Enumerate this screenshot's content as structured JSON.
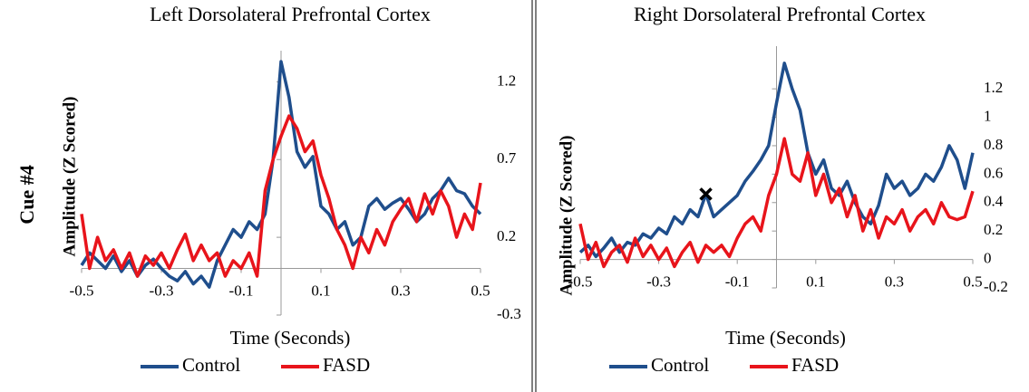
{
  "row_label": "Cue #4",
  "chart_data": [
    {
      "type": "line",
      "title": "Left Dorsolateral Prefrontal Cortex",
      "xlabel": "Time (Seconds)",
      "ylabel": "Amplitude (Z Scored)",
      "x": [
        -0.5,
        -0.48,
        -0.46,
        -0.44,
        -0.42,
        -0.4,
        -0.38,
        -0.36,
        -0.34,
        -0.32,
        -0.3,
        -0.28,
        -0.26,
        -0.24,
        -0.22,
        -0.2,
        -0.18,
        -0.16,
        -0.14,
        -0.12,
        -0.1,
        -0.08,
        -0.06,
        -0.04,
        -0.02,
        0,
        0.02,
        0.04,
        0.06,
        0.08,
        0.1,
        0.12,
        0.14,
        0.16,
        0.18,
        0.2,
        0.22,
        0.24,
        0.26,
        0.28,
        0.3,
        0.32,
        0.34,
        0.36,
        0.38,
        0.4,
        0.42,
        0.44,
        0.46,
        0.48,
        0.5
      ],
      "series": [
        {
          "name": "Control",
          "color": "#1f4e8c",
          "values": [
            0.02,
            0.1,
            0.05,
            0.0,
            0.08,
            -0.02,
            0.05,
            -0.05,
            0.02,
            0.06,
            0.0,
            -0.05,
            -0.08,
            -0.02,
            -0.1,
            -0.05,
            -0.12,
            0.05,
            0.15,
            0.25,
            0.2,
            0.3,
            0.25,
            0.35,
            0.7,
            1.33,
            1.1,
            0.75,
            0.65,
            0.72,
            0.4,
            0.35,
            0.25,
            0.3,
            0.15,
            0.2,
            0.4,
            0.45,
            0.38,
            0.42,
            0.45,
            0.38,
            0.3,
            0.35,
            0.45,
            0.5,
            0.58,
            0.5,
            0.48,
            0.4,
            0.35
          ]
        },
        {
          "name": "FASD",
          "color": "#e8141b",
          "values": [
            0.35,
            0.0,
            0.2,
            0.05,
            0.12,
            0.0,
            0.1,
            -0.05,
            0.08,
            0.02,
            0.1,
            0.0,
            0.12,
            0.22,
            0.05,
            0.15,
            0.05,
            0.1,
            -0.05,
            0.05,
            0.0,
            0.1,
            -0.05,
            0.5,
            0.7,
            0.85,
            0.98,
            0.9,
            0.75,
            0.82,
            0.6,
            0.45,
            0.25,
            0.15,
            0.0,
            0.2,
            0.1,
            0.25,
            0.15,
            0.3,
            0.38,
            0.45,
            0.3,
            0.48,
            0.35,
            0.5,
            0.4,
            0.2,
            0.35,
            0.25,
            0.55
          ]
        }
      ],
      "xlim": [
        -0.5,
        0.5
      ],
      "xticks": [
        -0.5,
        -0.3,
        -0.1,
        0.1,
        0.3,
        0.5
      ],
      "ylim": [
        -0.3,
        1.4
      ],
      "yticks": [
        -0.3,
        0.2,
        0.7,
        1.2
      ]
    },
    {
      "type": "line",
      "title": "Right Dorsolateral Prefrontal Cortex",
      "xlabel": "Time (Seconds)",
      "ylabel": "Amplitude (Z Scored)",
      "x": [
        -0.5,
        -0.48,
        -0.46,
        -0.44,
        -0.42,
        -0.4,
        -0.38,
        -0.36,
        -0.34,
        -0.32,
        -0.3,
        -0.28,
        -0.26,
        -0.24,
        -0.22,
        -0.2,
        -0.18,
        -0.16,
        -0.14,
        -0.12,
        -0.1,
        -0.08,
        -0.06,
        -0.04,
        -0.02,
        0,
        0.02,
        0.04,
        0.06,
        0.08,
        0.1,
        0.12,
        0.14,
        0.16,
        0.18,
        0.2,
        0.22,
        0.24,
        0.26,
        0.28,
        0.3,
        0.32,
        0.34,
        0.36,
        0.38,
        0.4,
        0.42,
        0.44,
        0.46,
        0.48,
        0.5
      ],
      "series": [
        {
          "name": "Control",
          "color": "#1f4e8c",
          "values": [
            0.05,
            0.1,
            0.02,
            0.08,
            0.15,
            0.05,
            0.12,
            0.1,
            0.18,
            0.15,
            0.22,
            0.18,
            0.3,
            0.25,
            0.35,
            0.3,
            0.46,
            0.3,
            0.35,
            0.4,
            0.45,
            0.55,
            0.62,
            0.7,
            0.8,
            1.1,
            1.38,
            1.2,
            1.05,
            0.75,
            0.6,
            0.7,
            0.5,
            0.45,
            0.55,
            0.4,
            0.3,
            0.25,
            0.38,
            0.6,
            0.5,
            0.55,
            0.45,
            0.5,
            0.6,
            0.55,
            0.65,
            0.8,
            0.7,
            0.5,
            0.75
          ]
        },
        {
          "name": "FASD",
          "color": "#e8141b",
          "values": [
            0.25,
            0.0,
            0.12,
            -0.05,
            0.05,
            0.1,
            -0.02,
            0.15,
            0.02,
            0.1,
            0.0,
            0.08,
            -0.05,
            0.05,
            0.12,
            -0.02,
            0.1,
            0.05,
            0.1,
            0.02,
            0.15,
            0.25,
            0.3,
            0.2,
            0.45,
            0.6,
            0.85,
            0.6,
            0.55,
            0.75,
            0.45,
            0.6,
            0.4,
            0.5,
            0.3,
            0.45,
            0.2,
            0.35,
            0.15,
            0.3,
            0.25,
            0.35,
            0.2,
            0.3,
            0.35,
            0.25,
            0.4,
            0.3,
            0.28,
            0.3,
            0.48
          ]
        }
      ],
      "annotation_point": {
        "x": -0.18,
        "y": 0.46,
        "symbol": "x"
      },
      "xlim": [
        -0.5,
        0.5
      ],
      "xticks": [
        -0.5,
        -0.3,
        -0.1,
        0.1,
        0.3,
        0.5
      ],
      "ylim": [
        -0.2,
        1.5
      ],
      "yticks": [
        -0.2,
        0,
        0.2,
        0.4,
        0.6,
        0.8,
        1,
        1.2
      ]
    }
  ]
}
